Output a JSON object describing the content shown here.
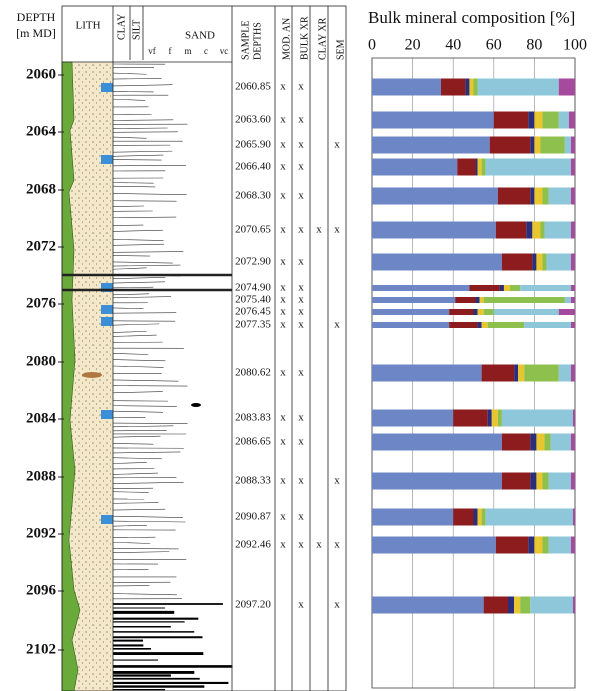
{
  "log": {
    "depth_header": [
      "DEPTH",
      "[m MD]"
    ],
    "lith_header": "LITH",
    "grain_headers": {
      "clay": "CLAY",
      "silt": "SILT",
      "sand": "SAND",
      "sizes": [
        "vf",
        "f",
        "m",
        "c",
        "vc"
      ]
    },
    "sample_header": [
      "SAMPLE",
      "DEPTHS"
    ],
    "analysis_headers": [
      "MOD. AN",
      "BULK XR",
      "CLAY XR",
      "SEM"
    ],
    "depth_labels": [
      "2060",
      "2064",
      "2068",
      "2072",
      "2076",
      "2080",
      "2084",
      "2088",
      "2092",
      "2096",
      "2102"
    ],
    "samples": [
      {
        "depth": "2060.85",
        "mod": "x",
        "bulk": "x"
      },
      {
        "depth": "2063.60",
        "mod": "x",
        "bulk": "x"
      },
      {
        "depth": "2065.90",
        "mod": "x",
        "bulk": "x",
        "sem": "x"
      },
      {
        "depth": "2066.40",
        "mod": "x",
        "bulk": "x"
      },
      {
        "depth": "2068.30",
        "mod": "x",
        "bulk": "x"
      },
      {
        "depth": "2070.65",
        "mod": "x",
        "bulk": "x",
        "clay": "x",
        "sem": "x"
      },
      {
        "depth": "2072.90",
        "mod": "x",
        "bulk": "x"
      },
      {
        "depth": "2074.90",
        "mod": "x",
        "bulk": "x"
      },
      {
        "depth": "2075.40",
        "mod": "x",
        "bulk": "x"
      },
      {
        "depth": "2076.45",
        "mod": "x",
        "bulk": "x"
      },
      {
        "depth": "2077.35",
        "mod": "x",
        "bulk": "x",
        "sem": "x"
      },
      {
        "depth": "2080.62",
        "mod": "x",
        "bulk": "x"
      },
      {
        "depth": "2083.83",
        "mod": "x",
        "bulk": "x"
      },
      {
        "depth": "2086.65",
        "mod": "x",
        "bulk": "x"
      },
      {
        "depth": "2088.33",
        "mod": "x",
        "bulk": "x",
        "sem": "x"
      },
      {
        "depth": "2090.87",
        "mod": "x",
        "bulk": "x"
      },
      {
        "depth": "2092.46",
        "mod": "x",
        "bulk": "x",
        "clay": "x",
        "sem": "x"
      },
      {
        "depth": "2097.20",
        "bulk": "x",
        "sem": "x"
      }
    ]
  },
  "chart_data": {
    "type": "stacked-barh",
    "title": "Bulk mineral composition [%]",
    "xlim": [
      0,
      100
    ],
    "xticks": [
      0,
      20,
      40,
      60,
      80,
      100
    ],
    "grid": true,
    "series": [
      {
        "color": "#6c86c6",
        "values": [
          34,
          60,
          58,
          42,
          62,
          61,
          64,
          48,
          41,
          38,
          38,
          54,
          40,
          64,
          64,
          40,
          61,
          55
        ]
      },
      {
        "color": "#8c1c1e",
        "values": [
          12,
          17,
          20,
          9,
          16,
          15,
          15,
          15,
          10,
          12,
          14,
          16,
          17,
          14,
          14,
          10,
          16,
          12
        ]
      },
      {
        "color": "#2b2f7a",
        "values": [
          2,
          3,
          2,
          1,
          2,
          3,
          2,
          2,
          2,
          2,
          2,
          2,
          2,
          3,
          3,
          2,
          3,
          3
        ]
      },
      {
        "color": "#e8c630",
        "values": [
          2,
          4,
          3,
          2,
          4,
          4,
          3,
          3,
          2,
          3,
          3,
          3,
          3,
          4,
          3,
          2,
          4,
          3
        ]
      },
      {
        "color": "#8dc04c",
        "values": [
          2,
          8,
          12,
          2,
          3,
          2,
          2,
          5,
          40,
          5,
          18,
          17,
          2,
          3,
          3,
          2,
          3,
          5
        ]
      },
      {
        "color": "#8ec6da",
        "values": [
          40,
          5,
          3,
          42,
          11,
          13,
          12,
          25,
          3,
          32,
          23,
          6,
          35,
          10,
          11,
          43,
          11,
          21
        ]
      },
      {
        "color": "#a54a9c",
        "values": [
          8,
          3,
          2,
          2,
          2,
          2,
          2,
          2,
          2,
          8,
          2,
          2,
          1,
          2,
          2,
          1,
          2,
          1
        ]
      }
    ]
  }
}
